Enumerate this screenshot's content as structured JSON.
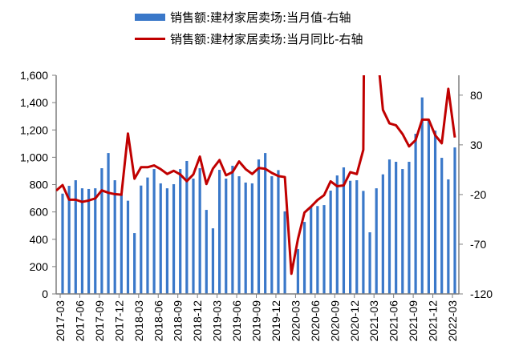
{
  "legend": {
    "bar_label": "销售额:建材家居卖场:当月值-右轴",
    "line_label": "销售额:建材家居卖场:当月同比-右轴"
  },
  "colors": {
    "bar": "#3a78c9",
    "line": "#c00000",
    "axis": "#7f7f7f"
  },
  "chart_data": {
    "type": "bar+line",
    "title": "",
    "xlabel": "",
    "ylabel": "",
    "y2label": "",
    "ylim": [
      0,
      1600
    ],
    "y2lim": [
      -120,
      100
    ],
    "yticks": [
      "0",
      "200",
      "400",
      "600",
      "800",
      "1,000",
      "1,200",
      "1,400",
      "1,600"
    ],
    "y2ticks": [
      "-120",
      "-70",
      "-20",
      "30",
      "80"
    ],
    "grid": false,
    "legend_position": "top",
    "x_tick_labels": [
      "2017-03",
      "2017-06",
      "2017-09",
      "2017-12",
      "2018-03",
      "2018-06",
      "2018-09",
      "2018-12",
      "2019-03",
      "2019-06",
      "2019-09",
      "2019-12",
      "2020-03",
      "2020-06",
      "2020-09",
      "2020-12",
      "2021-03",
      "2021-06",
      "2021-09",
      "2021-12",
      "2022-03"
    ],
    "categories": [
      "2017-03",
      "2017-04",
      "2017-05",
      "2017-06",
      "2017-07",
      "2017-08",
      "2017-09",
      "2017-10",
      "2017-11",
      "2017-12",
      "2018-01",
      "2018-02",
      "2018-03",
      "2018-04",
      "2018-05",
      "2018-06",
      "2018-07",
      "2018-08",
      "2018-09",
      "2018-10",
      "2018-11",
      "2018-12",
      "2019-01",
      "2019-02",
      "2019-03",
      "2019-04",
      "2019-05",
      "2019-06",
      "2019-07",
      "2019-08",
      "2019-09",
      "2019-10",
      "2019-11",
      "2019-12",
      "2020-01",
      "2020-02",
      "2020-03",
      "2020-04",
      "2020-05",
      "2020-06",
      "2020-07",
      "2020-08",
      "2020-09",
      "2020-10",
      "2020-11",
      "2020-12",
      "2021-01",
      "2021-02",
      "2021-03",
      "2021-04",
      "2021-05",
      "2021-06",
      "2021-07",
      "2021-08",
      "2021-09",
      "2021-10",
      "2021-11",
      "2021-12",
      "2022-01",
      "2022-02",
      "2022-03"
    ],
    "series": [
      {
        "name": "销售额:建材家居卖场:当月值-右轴",
        "type": "bar",
        "axis": "left",
        "values": [
          734,
          791,
          832,
          773,
          768,
          773,
          920,
          1031,
          832,
          727,
          682,
          445,
          793,
          852,
          914,
          809,
          773,
          803,
          914,
          973,
          844,
          920,
          615,
          480,
          908,
          844,
          938,
          861,
          815,
          809,
          984,
          1031,
          861,
          906,
          604,
          null,
          328,
          527,
          635,
          643,
          650,
          756,
          867,
          926,
          828,
          832,
          754,
          451,
          773,
          875,
          984,
          967,
          914,
          967,
          1172,
          1438,
          1270,
          1195,
          996,
          838,
          1072
        ]
      },
      {
        "name": "销售额:建材家居卖场:当月同比-右轴",
        "type": "line",
        "axis": "right",
        "values": [
          -10.5,
          -25.2,
          -25.2,
          -27.4,
          -26.0,
          -23.9,
          -15.8,
          -18.2,
          -19.6,
          -20.2,
          41.4,
          -4.1,
          7.5,
          7.5,
          9.3,
          5.6,
          0.7,
          3.9,
          0.2,
          -6.5,
          0.2,
          18.2,
          -9.4,
          6.1,
          14.7,
          -0.6,
          2.6,
          13.3,
          5.6,
          0.7,
          6.7,
          5.9,
          1.8,
          -1.4,
          -2.4,
          -99.7,
          -64.8,
          -38.1,
          -32.2,
          -25.5,
          -20.6,
          -6.7,
          -11.6,
          -10.8,
          2.5,
          0.6,
          25.0,
          1000,
          134,
          65.2,
          51.6,
          49.7,
          40.9,
          28.4,
          34.8,
          55.4,
          55.4,
          39.6,
          31.6,
          86.4,
          37.4
        ]
      }
    ]
  }
}
